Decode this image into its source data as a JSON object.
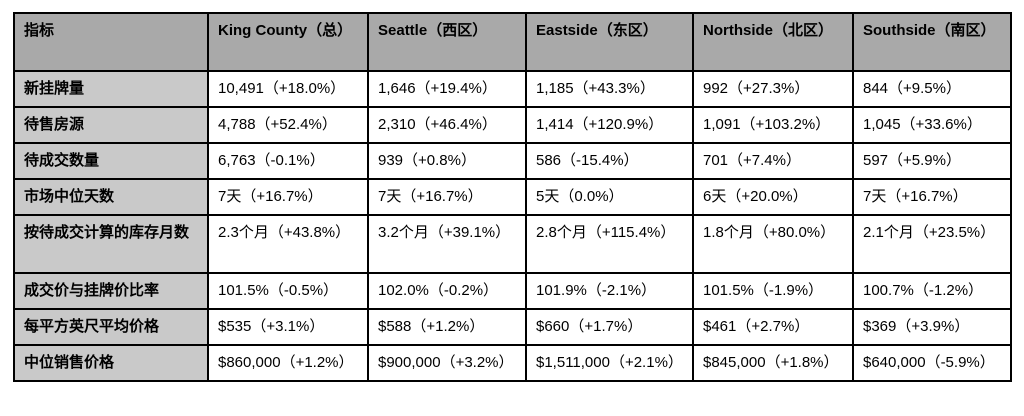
{
  "table": {
    "columns": [
      "指标",
      "King County（总）",
      "Seattle（西区）",
      "Eastside（东区）",
      "Northside（北区）",
      "Southside（南区）"
    ],
    "rows": [
      {
        "label": "新挂牌量",
        "values": [
          "10,491（+18.0%）",
          "1,646（+19.4%）",
          "1,185（+43.3%）",
          "992（+27.3%）",
          "844（+9.5%）"
        ]
      },
      {
        "label": "待售房源",
        "values": [
          "4,788（+52.4%）",
          "2,310（+46.4%）",
          "1,414（+120.9%）",
          "1,091（+103.2%）",
          "1,045（+33.6%）"
        ]
      },
      {
        "label": "待成交数量",
        "values": [
          "6,763（-0.1%）",
          "939（+0.8%）",
          "586（-15.4%）",
          "701（+7.4%）",
          "597（+5.9%）"
        ]
      },
      {
        "label": "市场中位天数",
        "values": [
          "7天（+16.7%）",
          "7天（+16.7%）",
          "5天（0.0%）",
          "6天（+20.0%）",
          "7天（+16.7%）"
        ]
      },
      {
        "label": "按待成交计算的库存月数",
        "values": [
          "2.3个月（+43.8%）",
          "3.2个月（+39.1%）",
          "2.8个月（+115.4%）",
          "1.8个月（+80.0%）",
          "2.1个月（+23.5%）"
        ]
      },
      {
        "label": "成交价与挂牌价比率",
        "values": [
          "101.5%（-0.5%）",
          "102.0%（-0.2%）",
          "101.9%（-2.1%）",
          "101.5%（-1.9%）",
          "100.7%（-1.2%）"
        ]
      },
      {
        "label": "每平方英尺平均价格",
        "values": [
          "$535（+3.1%）",
          "$588（+1.2%）",
          "$660（+1.7%）",
          "$461（+2.7%）",
          "$369（+3.9%）"
        ]
      },
      {
        "label": "中位销售价格",
        "values": [
          "$860,000（+1.2%）",
          "$900,000（+3.2%）",
          "$1,511,000（+2.1%）",
          "$845,000（+1.8%）",
          "$640,000（-5.9%）"
        ]
      }
    ],
    "colors": {
      "header_bg": "#a9a9a9",
      "label_bg": "#c9c9c9",
      "cell_bg": "#ffffff",
      "border": "#000000",
      "text": "#000000"
    }
  }
}
